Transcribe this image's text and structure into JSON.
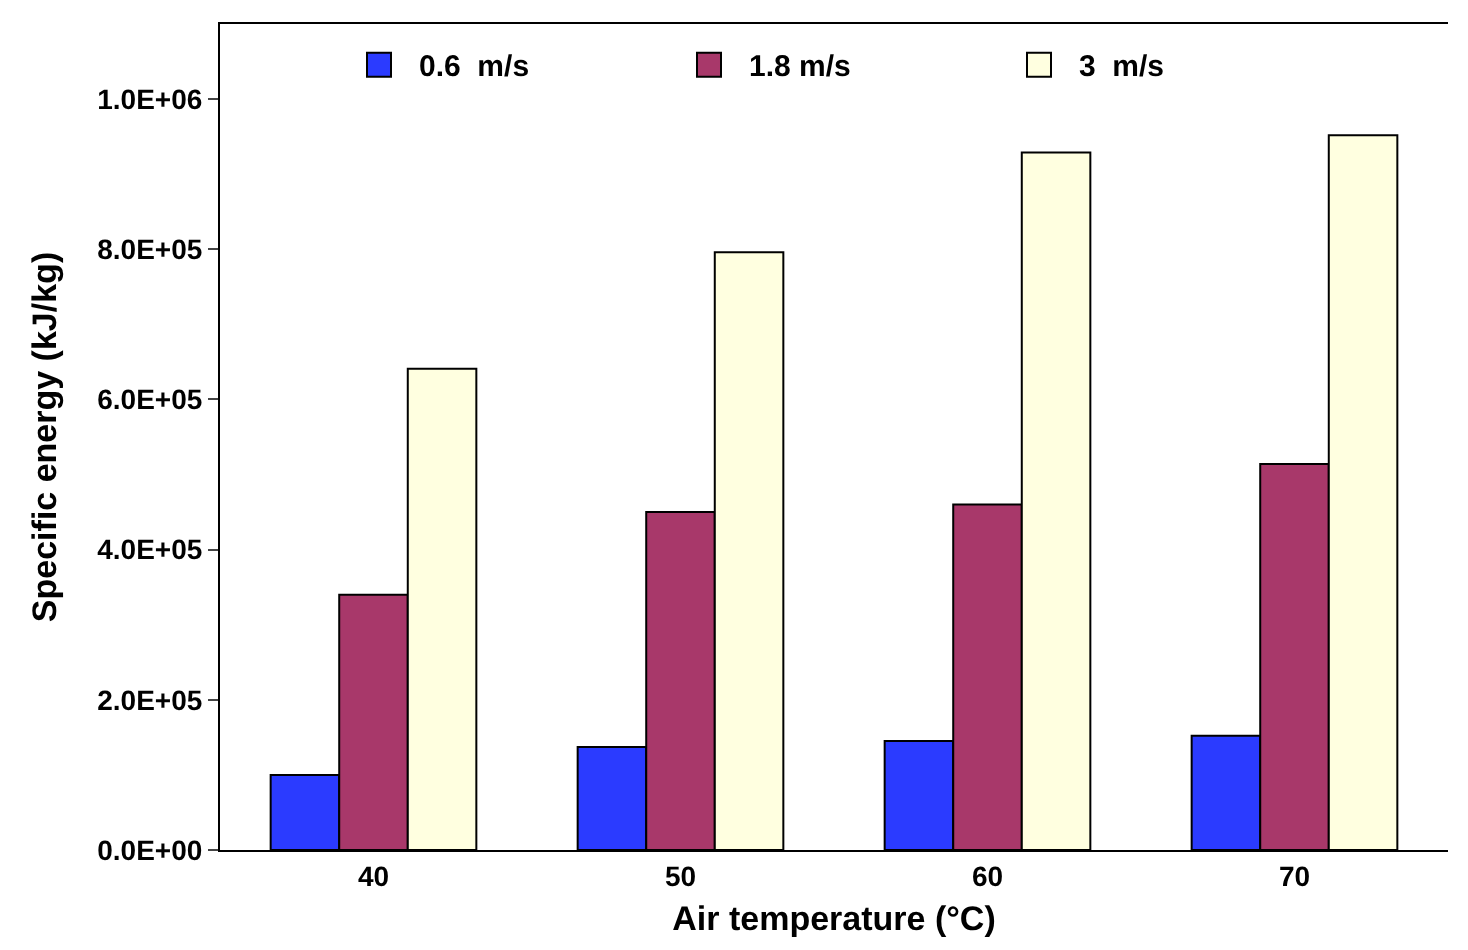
{
  "chart_data": {
    "type": "bar",
    "xlabel": "Air temperature (°C)",
    "ylabel": "Specific energy (kJ/kg)",
    "categories": [
      "40",
      "50",
      "60",
      "70"
    ],
    "series": [
      {
        "name": "0.6  m/s",
        "color": "#2b3bff",
        "values": [
          100000,
          137000,
          145000,
          152000
        ]
      },
      {
        "name": "1.8 m/s",
        "color": "#a8386a",
        "values": [
          340000,
          450000,
          460000,
          514000
        ]
      },
      {
        "name": "3  m/s",
        "color": "#ffffe0",
        "values": [
          641000,
          796000,
          929000,
          952000
        ]
      }
    ],
    "ylim": [
      0,
      1100000
    ],
    "yticks": [
      {
        "value": 0,
        "label": "0.0E+00"
      },
      {
        "value": 200000,
        "label": "2.0E+05"
      },
      {
        "value": 400000,
        "label": "4.0E+05"
      },
      {
        "value": 600000,
        "label": "6.0E+05"
      },
      {
        "value": 800000,
        "label": "8.0E+05"
      },
      {
        "value": 1000000,
        "label": "1.0E+06"
      }
    ],
    "grid": false,
    "legend": "top"
  }
}
